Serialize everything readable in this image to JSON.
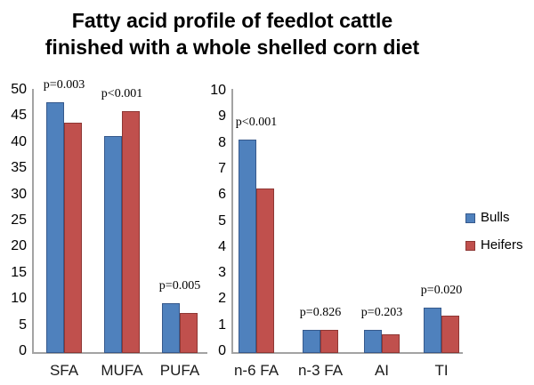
{
  "title": {
    "line1": "Fatty acid profile of feedlot cattle",
    "line2": "finished with a whole shelled corn diet"
  },
  "legend": {
    "position": "right",
    "items": [
      {
        "label": "Bulls",
        "color": "#4f81bd",
        "border": "#36598c"
      },
      {
        "label": "Heifers",
        "color": "#c0504d",
        "border": "#8e3734"
      }
    ]
  },
  "colors": {
    "bulls_fill": "#4f81bd",
    "bulls_border": "#36598c",
    "heifers_fill": "#c0504d",
    "heifers_border": "#8e3734",
    "axis_line": "#a3a3a3",
    "text": "#000000",
    "background": "#ffffff"
  },
  "chart_data": [
    {
      "type": "bar",
      "panel": "left",
      "title": "",
      "xlabel": "",
      "ylabel": "",
      "axis": {
        "ylim": [
          0,
          50
        ],
        "tick_step": 5,
        "yticks": [
          0,
          5,
          10,
          15,
          20,
          25,
          30,
          35,
          40,
          45,
          50
        ],
        "grid": false
      },
      "categories": [
        "SFA",
        "MUFA",
        "PUFA"
      ],
      "series": [
        {
          "name": "Bulls",
          "values": [
            48,
            41.5,
            9.5
          ]
        },
        {
          "name": "Heifers",
          "values": [
            44,
            46.2,
            7.6
          ]
        }
      ],
      "annotations": [
        {
          "category": "SFA",
          "text": "p=0.003"
        },
        {
          "category": "MUFA",
          "text": "p<0.001"
        },
        {
          "category": "PUFA",
          "text": "p=0.005"
        }
      ]
    },
    {
      "type": "bar",
      "panel": "right",
      "title": "",
      "xlabel": "",
      "ylabel": "",
      "axis": {
        "ylim": [
          0,
          10
        ],
        "tick_step": 1,
        "yticks": [
          0,
          1,
          2,
          3,
          4,
          5,
          6,
          7,
          8,
          9,
          10
        ],
        "grid": false
      },
      "categories": [
        "n-6 FA",
        "n-3 FA",
        "AI",
        "TI"
      ],
      "series": [
        {
          "name": "Bulls",
          "values": [
            8.2,
            0.9,
            0.88,
            1.75
          ]
        },
        {
          "name": "Heifers",
          "values": [
            6.3,
            0.88,
            0.72,
            1.45
          ]
        }
      ],
      "annotations": [
        {
          "category": "n-6 FA",
          "text": "p<0.001"
        },
        {
          "category": "n-3 FA",
          "text": "p=0.826"
        },
        {
          "category": "AI",
          "text": "p=0.203"
        },
        {
          "category": "TI",
          "text": "p=0.020"
        }
      ]
    }
  ]
}
